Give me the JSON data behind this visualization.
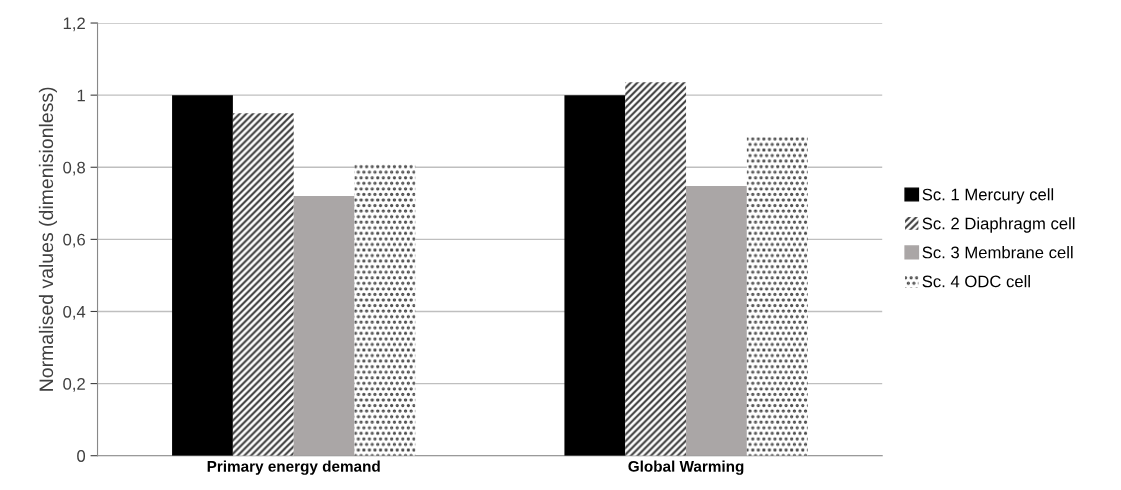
{
  "chart_data": {
    "type": "bar",
    "ylabel": "Normalised values (dimenisionless)",
    "categories": [
      "Primary energy demand",
      "Global Warming"
    ],
    "series": [
      {
        "name": "Sc. 1 Mercury cell",
        "color": "#000000",
        "values": [
          1.0,
          1.0
        ]
      },
      {
        "name": "Sc. 2 Diaphragm cell",
        "color": "#3a3a3a",
        "values": [
          0.95,
          1.036
        ]
      },
      {
        "name": "Sc. 3 Membrane cell",
        "color": "#aaa6a6",
        "values": [
          0.72,
          0.748
        ]
      },
      {
        "name": "Sc. 4 ODC cell",
        "color": "#404040",
        "values": [
          0.81,
          0.884
        ]
      }
    ],
    "ylim": [
      0,
      1.2
    ],
    "yticks": [
      0,
      {
        "value": 0.2,
        "label": "0,2"
      },
      {
        "value": 0.4,
        "label": "0,4"
      },
      {
        "value": 0.6,
        "label": "0,6"
      },
      {
        "value": 0.8,
        "label": "0,8"
      },
      1,
      {
        "value": 1.2,
        "label": "1,2"
      }
    ],
    "grid": "y",
    "legend": "right"
  }
}
